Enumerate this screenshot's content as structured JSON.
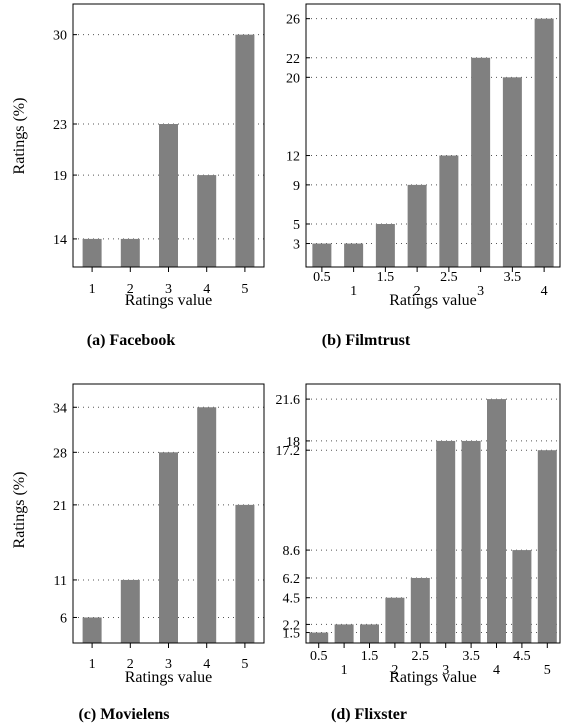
{
  "chart_data": [
    {
      "type": "bar",
      "caption": "(a) Facebook",
      "xlabel": "Ratings value",
      "ylabel": "Ratings (%)",
      "categories": [
        "1",
        "2",
        "3",
        "4",
        "5"
      ],
      "values": [
        14,
        14,
        23,
        19,
        30
      ],
      "yticks": [
        14,
        19,
        23,
        30
      ],
      "ylim": [
        11.8,
        32.4
      ],
      "grid": true
    },
    {
      "type": "bar",
      "caption": "(b) Filmtrust",
      "xlabel": "Ratings value",
      "ylabel": "",
      "categories": [
        "0.5",
        "1",
        "1.5",
        "2",
        "2.5",
        "3",
        "3.5",
        "4"
      ],
      "values": [
        3,
        3,
        5,
        9,
        12,
        22,
        20,
        26
      ],
      "yticks": [
        3,
        5,
        9,
        12,
        20,
        22,
        26
      ],
      "ylim": [
        0.6,
        27.5
      ],
      "grid": true
    },
    {
      "type": "bar",
      "caption": "(c) Movielens",
      "xlabel": "Ratings value",
      "ylabel": "Ratings (%)",
      "categories": [
        "1",
        "2",
        "3",
        "4",
        "5"
      ],
      "values": [
        6,
        11,
        28,
        34,
        21
      ],
      "yticks": [
        6,
        11,
        21,
        28,
        34
      ],
      "ylim": [
        2.6,
        37.1
      ],
      "grid": true
    },
    {
      "type": "bar",
      "caption": "(d) Flixster",
      "xlabel": "Ratings value",
      "ylabel": "",
      "categories": [
        "0.5",
        "1",
        "1.5",
        "2",
        "2.5",
        "3",
        "3.5",
        "4",
        "4.5",
        "5"
      ],
      "values": [
        1.5,
        2.2,
        2.2,
        4.5,
        6.2,
        18,
        18,
        21.6,
        8.6,
        17.2
      ],
      "yticks": [
        1.5,
        2.2,
        4.5,
        6.2,
        8.6,
        17.2,
        18,
        21.6
      ],
      "ylim": [
        0.6,
        22.9
      ],
      "grid": true
    }
  ]
}
